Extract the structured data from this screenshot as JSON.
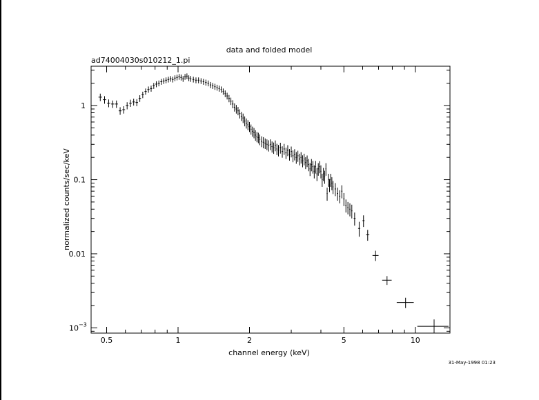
{
  "chart_data": {
    "type": "scatter",
    "title": "data and folded model",
    "subtitle": "ad74004030s010212_1.pi",
    "xlabel": "channel energy (keV)",
    "ylabel": "normalized counts/sec/keV",
    "timestamp": "31-May-1998 01:23",
    "x_scale": "log",
    "y_scale": "log",
    "xlim": [
      0.43,
      14.0
    ],
    "ylim": [
      0.00085,
      3.4
    ],
    "grid": false,
    "x_ticks": [
      {
        "value": 0.5,
        "label": "0.5"
      },
      {
        "value": 1,
        "label": "1"
      },
      {
        "value": 2,
        "label": "2"
      },
      {
        "value": 5,
        "label": "5"
      },
      {
        "value": 10,
        "label": "10"
      }
    ],
    "y_ticks": [
      {
        "value": 1,
        "label": "1"
      },
      {
        "value": 0.1,
        "label": "0.1"
      },
      {
        "value": 0.01,
        "label": "0.01"
      },
      {
        "value": 0.001,
        "label": "10",
        "exponent": "−3"
      }
    ],
    "series": [
      {
        "points": [
          [
            0.47,
            1.3,
            0.008,
            0.15
          ],
          [
            0.49,
            1.2,
            0.008,
            0.14
          ],
          [
            0.51,
            1.08,
            0.008,
            0.13
          ],
          [
            0.53,
            1.05,
            0.008,
            0.12
          ],
          [
            0.55,
            1.05,
            0.008,
            0.12
          ],
          [
            0.57,
            0.85,
            0.008,
            0.1
          ],
          [
            0.59,
            0.88,
            0.008,
            0.1
          ],
          [
            0.61,
            1.0,
            0.008,
            0.11
          ],
          [
            0.63,
            1.08,
            0.008,
            0.12
          ],
          [
            0.65,
            1.12,
            0.008,
            0.12
          ],
          [
            0.67,
            1.1,
            0.008,
            0.12
          ],
          [
            0.69,
            1.25,
            0.008,
            0.13
          ],
          [
            0.71,
            1.4,
            0.008,
            0.14
          ],
          [
            0.73,
            1.55,
            0.008,
            0.15
          ],
          [
            0.75,
            1.65,
            0.008,
            0.16
          ],
          [
            0.77,
            1.7,
            0.008,
            0.16
          ],
          [
            0.79,
            1.85,
            0.008,
            0.17
          ],
          [
            0.81,
            1.95,
            0.008,
            0.18
          ],
          [
            0.83,
            2.0,
            0.008,
            0.18
          ],
          [
            0.85,
            2.1,
            0.008,
            0.19
          ],
          [
            0.87,
            2.15,
            0.008,
            0.19
          ],
          [
            0.89,
            2.2,
            0.008,
            0.2
          ],
          [
            0.91,
            2.25,
            0.008,
            0.2
          ],
          [
            0.93,
            2.3,
            0.008,
            0.2
          ],
          [
            0.95,
            2.25,
            0.008,
            0.2
          ],
          [
            0.97,
            2.35,
            0.008,
            0.21
          ],
          [
            0.99,
            2.4,
            0.008,
            0.21
          ],
          [
            1.01,
            2.45,
            0.008,
            0.22
          ],
          [
            1.03,
            2.4,
            0.008,
            0.22
          ],
          [
            1.05,
            2.3,
            0.008,
            0.21
          ],
          [
            1.07,
            2.45,
            0.008,
            0.22
          ],
          [
            1.09,
            2.5,
            0.008,
            0.22
          ],
          [
            1.11,
            2.35,
            0.008,
            0.21
          ],
          [
            1.13,
            2.3,
            0.008,
            0.21
          ],
          [
            1.16,
            2.25,
            0.01,
            0.2
          ],
          [
            1.19,
            2.2,
            0.01,
            0.2
          ],
          [
            1.22,
            2.2,
            0.01,
            0.2
          ],
          [
            1.25,
            2.15,
            0.01,
            0.19
          ],
          [
            1.28,
            2.1,
            0.01,
            0.19
          ],
          [
            1.31,
            2.05,
            0.01,
            0.19
          ],
          [
            1.34,
            2.0,
            0.01,
            0.18
          ],
          [
            1.37,
            1.9,
            0.01,
            0.18
          ],
          [
            1.4,
            1.85,
            0.01,
            0.17
          ],
          [
            1.43,
            1.8,
            0.01,
            0.17
          ],
          [
            1.46,
            1.75,
            0.01,
            0.16
          ],
          [
            1.49,
            1.7,
            0.01,
            0.16
          ],
          [
            1.52,
            1.65,
            0.01,
            0.16
          ],
          [
            1.55,
            1.55,
            0.01,
            0.15
          ],
          [
            1.58,
            1.45,
            0.01,
            0.15
          ],
          [
            1.61,
            1.35,
            0.012,
            0.14
          ],
          [
            1.64,
            1.25,
            0.012,
            0.14
          ],
          [
            1.67,
            1.15,
            0.012,
            0.13
          ],
          [
            1.7,
            1.05,
            0.012,
            0.13
          ],
          [
            1.73,
            0.95,
            0.012,
            0.12
          ],
          [
            1.76,
            0.9,
            0.012,
            0.12
          ],
          [
            1.79,
            0.85,
            0.012,
            0.11
          ],
          [
            1.82,
            0.78,
            0.012,
            0.11
          ],
          [
            1.85,
            0.72,
            0.012,
            0.1
          ],
          [
            1.88,
            0.68,
            0.012,
            0.1
          ],
          [
            1.91,
            0.62,
            0.012,
            0.095
          ],
          [
            1.94,
            0.58,
            0.012,
            0.09
          ],
          [
            1.97,
            0.55,
            0.012,
            0.085
          ],
          [
            2.0,
            0.52,
            0.012,
            0.08
          ],
          [
            2.03,
            0.48,
            0.012,
            0.075
          ],
          [
            2.06,
            0.45,
            0.012,
            0.07
          ],
          [
            2.09,
            0.43,
            0.012,
            0.068
          ],
          [
            2.12,
            0.4,
            0.012,
            0.065
          ],
          [
            2.15,
            0.38,
            0.012,
            0.06
          ],
          [
            2.18,
            0.37,
            0.012,
            0.06
          ],
          [
            2.21,
            0.35,
            0.012,
            0.058
          ],
          [
            2.25,
            0.33,
            0.015,
            0.055
          ],
          [
            2.29,
            0.32,
            0.015,
            0.055
          ],
          [
            2.33,
            0.31,
            0.015,
            0.05
          ],
          [
            2.37,
            0.3,
            0.015,
            0.05
          ],
          [
            2.41,
            0.29,
            0.015,
            0.05
          ],
          [
            2.45,
            0.3,
            0.015,
            0.05
          ],
          [
            2.49,
            0.28,
            0.015,
            0.048
          ],
          [
            2.53,
            0.27,
            0.015,
            0.047
          ],
          [
            2.57,
            0.29,
            0.015,
            0.048
          ],
          [
            2.61,
            0.26,
            0.015,
            0.045
          ],
          [
            2.65,
            0.25,
            0.015,
            0.044
          ],
          [
            2.7,
            0.27,
            0.02,
            0.045
          ],
          [
            2.75,
            0.24,
            0.02,
            0.042
          ],
          [
            2.8,
            0.26,
            0.02,
            0.044
          ],
          [
            2.85,
            0.23,
            0.02,
            0.04
          ],
          [
            2.9,
            0.25,
            0.02,
            0.042
          ],
          [
            2.95,
            0.22,
            0.02,
            0.039
          ],
          [
            3.0,
            0.24,
            0.02,
            0.04
          ],
          [
            3.05,
            0.21,
            0.02,
            0.038
          ],
          [
            3.1,
            0.22,
            0.02,
            0.038
          ],
          [
            3.15,
            0.2,
            0.02,
            0.036
          ],
          [
            3.2,
            0.21,
            0.02,
            0.036
          ],
          [
            3.25,
            0.19,
            0.02,
            0.034
          ],
          [
            3.3,
            0.2,
            0.02,
            0.035
          ],
          [
            3.35,
            0.18,
            0.02,
            0.033
          ],
          [
            3.4,
            0.19,
            0.02,
            0.034
          ],
          [
            3.45,
            0.17,
            0.02,
            0.031
          ],
          [
            3.5,
            0.18,
            0.02,
            0.032
          ],
          [
            3.55,
            0.16,
            0.02,
            0.03
          ],
          [
            3.6,
            0.14,
            0.02,
            0.028
          ],
          [
            3.65,
            0.16,
            0.02,
            0.03
          ],
          [
            3.7,
            0.15,
            0.02,
            0.029
          ],
          [
            3.75,
            0.13,
            0.02,
            0.026
          ],
          [
            3.8,
            0.15,
            0.02,
            0.029
          ],
          [
            3.85,
            0.12,
            0.02,
            0.024
          ],
          [
            3.9,
            0.14,
            0.02,
            0.027
          ],
          [
            3.95,
            0.15,
            0.02,
            0.028
          ],
          [
            4.0,
            0.13,
            0.02,
            0.026
          ],
          [
            4.05,
            0.1,
            0.02,
            0.02
          ],
          [
            4.1,
            0.12,
            0.02,
            0.024
          ],
          [
            4.15,
            0.11,
            0.02,
            0.022
          ],
          [
            4.2,
            0.14,
            0.02,
            0.027
          ],
          [
            4.25,
            0.065,
            0.02,
            0.013
          ],
          [
            4.3,
            0.1,
            0.02,
            0.02
          ],
          [
            4.35,
            0.085,
            0.02,
            0.017
          ],
          [
            4.4,
            0.1,
            0.02,
            0.02
          ],
          [
            4.45,
            0.09,
            0.02,
            0.018
          ],
          [
            4.5,
            0.08,
            0.02,
            0.016
          ],
          [
            4.6,
            0.075,
            0.03,
            0.015
          ],
          [
            4.7,
            0.065,
            0.03,
            0.013
          ],
          [
            4.8,
            0.06,
            0.03,
            0.012
          ],
          [
            4.9,
            0.07,
            0.03,
            0.014
          ],
          [
            5.0,
            0.055,
            0.03,
            0.011
          ],
          [
            5.1,
            0.045,
            0.03,
            0.009
          ],
          [
            5.2,
            0.042,
            0.03,
            0.008
          ],
          [
            5.3,
            0.04,
            0.03,
            0.008
          ],
          [
            5.4,
            0.038,
            0.03,
            0.008
          ],
          [
            5.55,
            0.03,
            0.05,
            0.006
          ],
          [
            5.8,
            0.022,
            0.06,
            0.005
          ],
          [
            6.05,
            0.028,
            0.06,
            0.005
          ],
          [
            6.3,
            0.018,
            0.1,
            0.003
          ],
          [
            6.8,
            0.0095,
            0.2,
            0.0015
          ],
          [
            7.6,
            0.0044,
            0.35,
            0.0006
          ],
          [
            9.1,
            0.0022,
            0.75,
            0.00035
          ],
          [
            12.0,
            0.00105,
            1.8,
            0.00025
          ]
        ]
      }
    ]
  }
}
